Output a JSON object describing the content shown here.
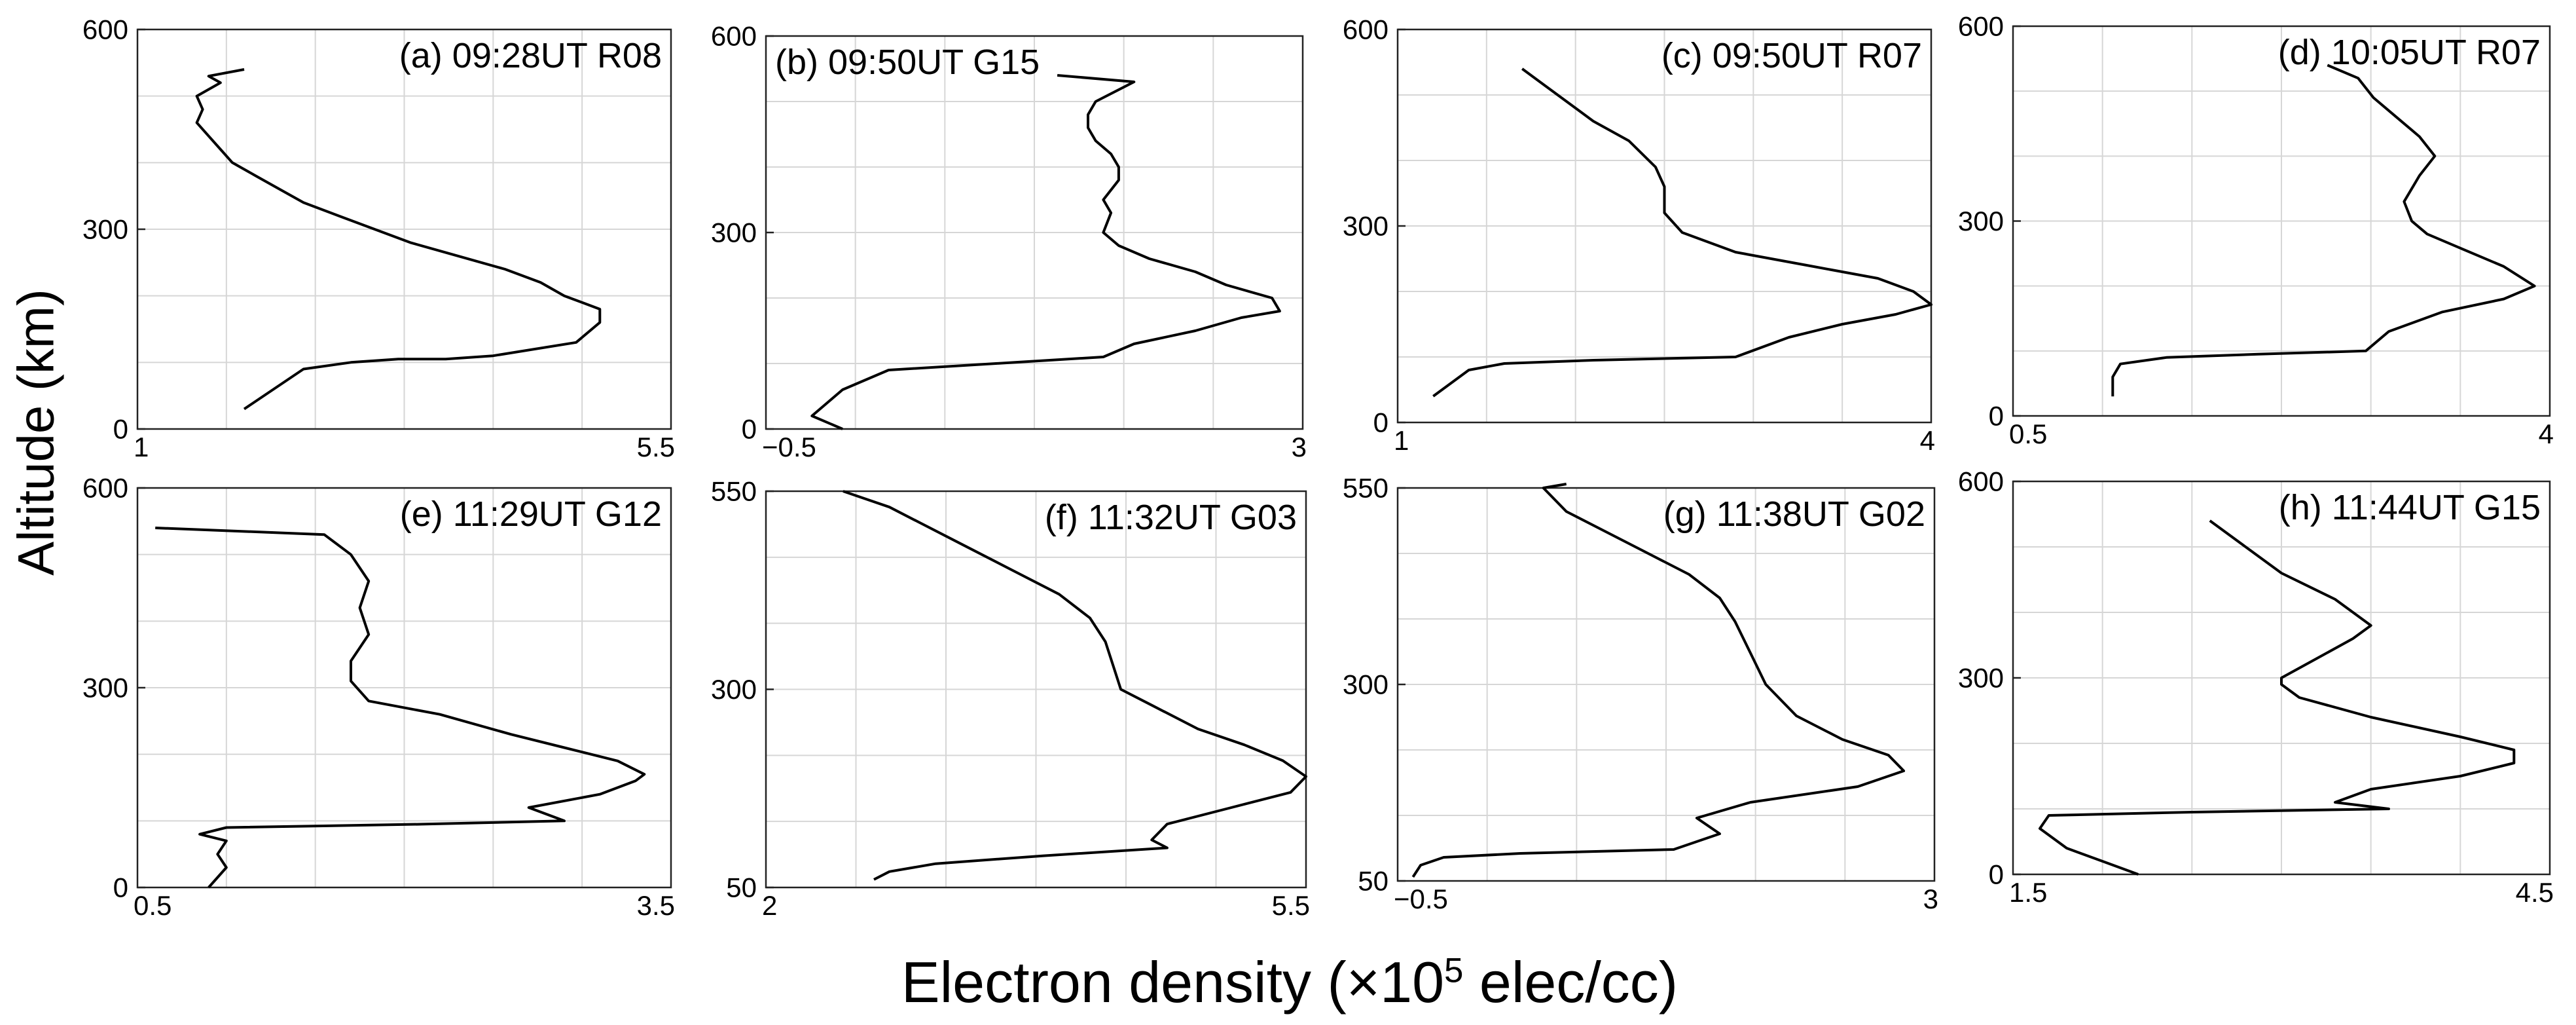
{
  "figure": {
    "ylabel": "Altitude (km)",
    "xlabel_pre": "Electron density (×10",
    "xlabel_sup": "5",
    "xlabel_post": " elec/cc)"
  },
  "chart_data": [
    {
      "type": "line",
      "title": "(a) 09:28UT R08",
      "xlim": [
        1,
        5.5
      ],
      "ylim": [
        0,
        600
      ],
      "xticks": [
        1,
        5.5
      ],
      "yticks": [
        0,
        300,
        600
      ],
      "grid": true,
      "series": [
        {
          "x": [
            1.9,
            2.15,
            2.4,
            2.8,
            3.2,
            3.6,
            4.0,
            4.7,
            4.9,
            4.9,
            4.6,
            4.4,
            4.1,
            3.7,
            3.3,
            3.0,
            2.7,
            2.4,
            2.2,
            2.0,
            1.8,
            1.7,
            1.6,
            1.5,
            1.55,
            1.5,
            1.7,
            1.6,
            1.9
          ],
          "y": [
            30,
            60,
            90,
            100,
            105,
            105,
            110,
            130,
            160,
            180,
            200,
            220,
            240,
            260,
            280,
            300,
            320,
            340,
            360,
            380,
            400,
            420,
            440,
            460,
            480,
            500,
            520,
            530,
            540
          ]
        }
      ]
    },
    {
      "type": "line",
      "title": "(b) 09:50UT G15",
      "xlim": [
        -0.5,
        3
      ],
      "ylim": [
        0,
        600
      ],
      "xticks": [
        -0.5,
        3
      ],
      "yticks": [
        0,
        300,
        600
      ],
      "grid": true,
      "series": [
        {
          "x": [
            0.0,
            -0.2,
            -0.1,
            0.0,
            0.3,
            1.0,
            1.7,
            1.9,
            2.3,
            2.6,
            2.85,
            2.8,
            2.5,
            2.3,
            2.0,
            1.8,
            1.7,
            1.75,
            1.7,
            1.8,
            1.8,
            1.75,
            1.65,
            1.6,
            1.6,
            1.65,
            1.9,
            1.4
          ],
          "y": [
            0,
            20,
            40,
            60,
            90,
            100,
            110,
            130,
            150,
            170,
            180,
            200,
            220,
            240,
            260,
            280,
            300,
            330,
            350,
            380,
            400,
            420,
            440,
            460,
            480,
            500,
            530,
            540
          ]
        }
      ]
    },
    {
      "type": "line",
      "title": "(c) 09:50UT R07",
      "xlim": [
        1,
        4
      ],
      "ylim": [
        0,
        600
      ],
      "xticks": [
        1,
        4
      ],
      "yticks": [
        0,
        300,
        600
      ],
      "grid": true,
      "series": [
        {
          "x": [
            1.2,
            1.3,
            1.4,
            1.6,
            2.1,
            2.9,
            3.2,
            3.5,
            3.8,
            4.0,
            3.9,
            3.7,
            3.3,
            2.9,
            2.6,
            2.5,
            2.5,
            2.45,
            2.3,
            2.1,
            1.95,
            1.8,
            1.7
          ],
          "y": [
            40,
            60,
            80,
            90,
            95,
            100,
            130,
            150,
            165,
            180,
            200,
            220,
            240,
            260,
            290,
            320,
            360,
            390,
            430,
            460,
            490,
            520,
            540
          ]
        }
      ]
    },
    {
      "type": "line",
      "title": "(d) 10:05UT R07",
      "xlim": [
        0.5,
        4
      ],
      "ylim": [
        0,
        600
      ],
      "xticks": [
        0.5,
        4
      ],
      "yticks": [
        0,
        300,
        600
      ],
      "grid": true,
      "series": [
        {
          "x": [
            1.15,
            1.15,
            1.2,
            1.5,
            2.1,
            2.8,
            2.95,
            3.3,
            3.7,
            3.9,
            3.7,
            3.4,
            3.2,
            3.1,
            3.05,
            3.15,
            3.25,
            3.15,
            3.0,
            2.85,
            2.75,
            2.55
          ],
          "y": [
            30,
            60,
            80,
            90,
            95,
            100,
            130,
            160,
            180,
            200,
            230,
            260,
            280,
            300,
            330,
            370,
            400,
            430,
            460,
            490,
            520,
            540
          ]
        }
      ]
    },
    {
      "type": "line",
      "title": "(e) 11:29UT G12",
      "xlim": [
        0.5,
        3.5
      ],
      "ylim": [
        0,
        600
      ],
      "xticks": [
        0.5,
        3.5
      ],
      "yticks": [
        0,
        300,
        600
      ],
      "grid": true,
      "series": [
        {
          "x": [
            0.9,
            1.0,
            0.95,
            1.0,
            0.85,
            1.0,
            2.1,
            2.9,
            2.7,
            3.1,
            3.3,
            3.35,
            3.2,
            2.9,
            2.6,
            2.2,
            1.8,
            1.7,
            1.7,
            1.8,
            1.75,
            1.8,
            1.7,
            1.55,
            0.6
          ],
          "y": [
            0,
            30,
            50,
            70,
            80,
            90,
            95,
            100,
            120,
            140,
            160,
            170,
            190,
            210,
            230,
            260,
            280,
            310,
            340,
            380,
            420,
            460,
            500,
            530,
            540
          ]
        }
      ]
    },
    {
      "type": "line",
      "title": "(f) 11:32UT G03",
      "xlim": [
        2,
        5.5
      ],
      "ylim": [
        50,
        550
      ],
      "xticks": [
        2,
        5.5
      ],
      "yticks": [
        50,
        300,
        550
      ],
      "grid": true,
      "series": [
        {
          "x": [
            2.7,
            2.8,
            3.1,
            3.8,
            4.6,
            4.5,
            4.6,
            5.0,
            5.4,
            5.5,
            5.35,
            5.1,
            4.8,
            4.5,
            4.3,
            4.25,
            4.2,
            4.1,
            3.9,
            3.6,
            3.3,
            3.0,
            2.8,
            2.5
          ],
          "y": [
            60,
            70,
            80,
            90,
            100,
            110,
            130,
            150,
            170,
            190,
            210,
            230,
            250,
            280,
            300,
            330,
            360,
            390,
            420,
            450,
            480,
            510,
            530,
            550
          ]
        }
      ]
    },
    {
      "type": "line",
      "title": "(g) 11:38UT G02",
      "xlim": [
        -0.5,
        3
      ],
      "ylim": [
        50,
        550
      ],
      "xticks": [
        -0.5,
        3
      ],
      "yticks": [
        50,
        300,
        550
      ],
      "grid": true,
      "series": [
        {
          "x": [
            -0.4,
            -0.35,
            -0.2,
            0.3,
            1.3,
            1.6,
            1.45,
            1.8,
            2.5,
            2.8,
            2.7,
            2.4,
            2.1,
            1.9,
            1.8,
            1.7,
            1.6,
            1.4,
            1.1,
            0.8,
            0.6,
            0.5,
            0.45,
            0.6
          ],
          "y": [
            55,
            70,
            80,
            85,
            90,
            110,
            130,
            150,
            170,
            190,
            210,
            230,
            260,
            300,
            340,
            380,
            410,
            440,
            470,
            500,
            520,
            540,
            550,
            555
          ]
        }
      ]
    },
    {
      "type": "line",
      "title": "(h) 11:44UT G15",
      "xlim": [
        1.5,
        4.5
      ],
      "ylim": [
        0,
        600
      ],
      "xticks": [
        1.5,
        4.5
      ],
      "yticks": [
        0,
        300,
        600
      ],
      "grid": true,
      "series": [
        {
          "x": [
            2.2,
            2.0,
            1.8,
            1.65,
            1.7,
            2.5,
            3.6,
            3.3,
            3.5,
            4.0,
            4.3,
            4.3,
            4.0,
            3.5,
            3.1,
            3.0,
            3.0,
            3.2,
            3.4,
            3.5,
            3.3,
            3.0,
            2.8,
            2.6
          ],
          "y": [
            0,
            20,
            40,
            70,
            90,
            95,
            100,
            110,
            130,
            150,
            170,
            190,
            210,
            240,
            270,
            290,
            300,
            330,
            360,
            380,
            420,
            460,
            500,
            540
          ]
        }
      ]
    }
  ]
}
